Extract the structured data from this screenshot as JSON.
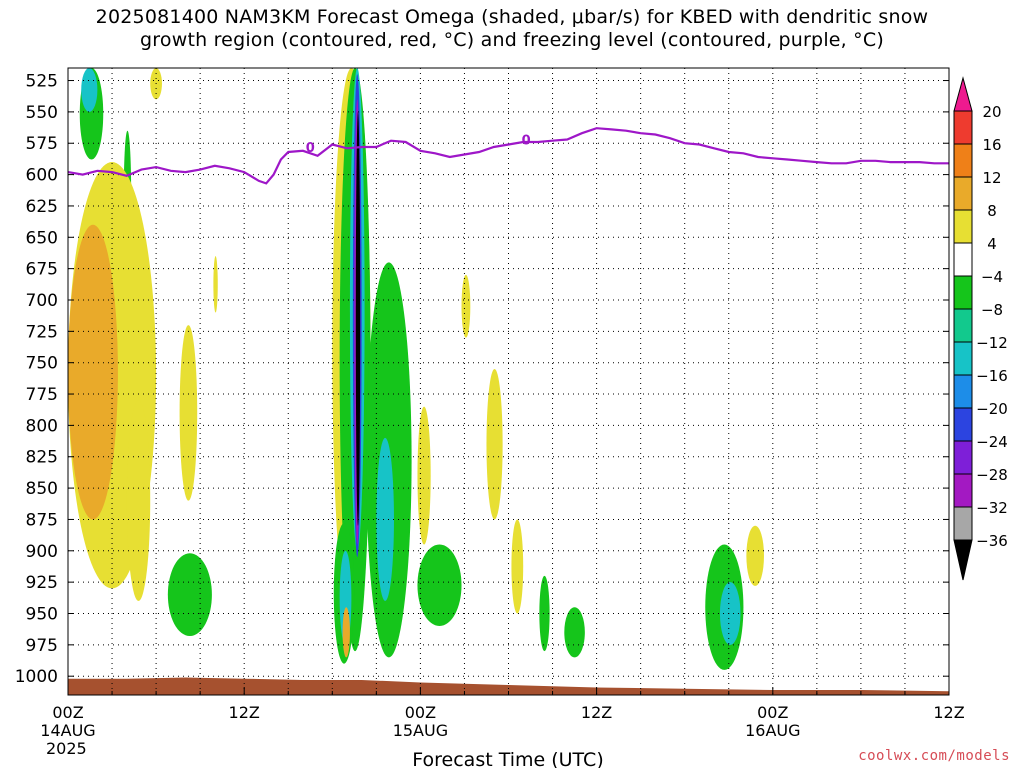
{
  "title": "2025081400 NAM3KM Forecast Omega (shaded, μbar/s) for KBED with dendritic snow\ngrowth region (contoured, red, °C) and freezing level (contoured, purple, °C)",
  "credit": "coolwx.com/models",
  "chart_data": {
    "type": "heatmap",
    "title": "2025081400 NAM3KM Forecast Omega (shaded, μbar/s) for KBED with dendritic snow growth region (contoured, red, °C) and freezing level (contoured, purple, °C)",
    "xlabel": "Forecast Time (UTC)",
    "ylabel": "",
    "x_unit": "hours since 14AUG 00Z",
    "xlim": [
      0,
      60
    ],
    "ylim": [
      1015,
      515
    ],
    "y_ticks": [
      525,
      550,
      575,
      600,
      625,
      650,
      675,
      700,
      725,
      750,
      775,
      800,
      825,
      850,
      875,
      900,
      925,
      950,
      975,
      1000
    ],
    "x_ticks": [
      {
        "x": 0,
        "label": "00Z",
        "sub1": "14AUG",
        "sub2": "2025"
      },
      {
        "x": 12,
        "label": "12Z",
        "sub1": "",
        "sub2": ""
      },
      {
        "x": 24,
        "label": "00Z",
        "sub1": "15AUG",
        "sub2": ""
      },
      {
        "x": 36,
        "label": "12Z",
        "sub1": "",
        "sub2": ""
      },
      {
        "x": 48,
        "label": "00Z",
        "sub1": "16AUG",
        "sub2": ""
      },
      {
        "x": 60,
        "label": "12Z",
        "sub1": "",
        "sub2": ""
      }
    ],
    "grid": true,
    "colorbar": {
      "labels": [
        "20",
        "16",
        "12",
        "8",
        "4",
        "−4",
        "−8",
        "−12",
        "−16",
        "−20",
        "−24",
        "−28",
        "−32",
        "−36"
      ],
      "bins": [
        {
          "from": 20,
          "to": 24,
          "color": "#ee1a8f"
        },
        {
          "from": 16,
          "to": 20,
          "color": "#ee3b2f"
        },
        {
          "from": 12,
          "to": 16,
          "color": "#ef8018"
        },
        {
          "from": 8,
          "to": 12,
          "color": "#e9aa2a"
        },
        {
          "from": 4,
          "to": 8,
          "color": "#e7df33"
        },
        {
          "from": -4,
          "to": 4,
          "color": "#ffffff"
        },
        {
          "from": -8,
          "to": -4,
          "color": "#15c51b"
        },
        {
          "from": -12,
          "to": -8,
          "color": "#12c98d"
        },
        {
          "from": -16,
          "to": -12,
          "color": "#17c3c7"
        },
        {
          "from": -20,
          "to": -16,
          "color": "#1d8de8"
        },
        {
          "from": -24,
          "to": -20,
          "color": "#2c44e0"
        },
        {
          "from": -28,
          "to": -24,
          "color": "#7e1fd8"
        },
        {
          "from": -32,
          "to": -28,
          "color": "#a319c2"
        },
        {
          "from": -36,
          "to": -32,
          "color": "#a7a7a7"
        },
        {
          "from": -40,
          "to": -36,
          "color": "#000000"
        }
      ]
    },
    "freezing_level": {
      "label": "0",
      "color": "#9e17c8",
      "x": [
        0,
        1,
        2,
        3,
        4,
        5,
        6,
        7,
        8,
        9,
        10,
        11,
        12,
        13,
        13.5,
        14,
        14.5,
        15,
        16,
        17,
        18,
        19,
        20,
        21,
        22,
        23,
        24,
        25,
        26,
        27,
        28,
        29,
        30,
        31,
        32,
        33,
        34,
        35,
        36,
        37,
        38,
        39,
        40,
        41,
        42,
        43,
        44,
        45,
        46,
        47,
        48,
        49,
        50,
        51,
        52,
        53,
        54,
        55,
        56,
        57,
        58,
        59,
        60
      ],
      "p": [
        598,
        600,
        597,
        598,
        601,
        596,
        594,
        597,
        598,
        596,
        593,
        595,
        598,
        605,
        607,
        600,
        588,
        582,
        581,
        585,
        576,
        579,
        578,
        578,
        573,
        574,
        581,
        583,
        586,
        584,
        582,
        578,
        576,
        574,
        574,
        573,
        572,
        567,
        563,
        564,
        565,
        567,
        568,
        571,
        575,
        576,
        579,
        582,
        583,
        586,
        587,
        588,
        589,
        590,
        591,
        591,
        589,
        589,
        590,
        590,
        590,
        591,
        591
      ],
      "label_positions": [
        {
          "x": 16.5,
          "p": 578
        },
        {
          "x": 31.2,
          "p": 572
        }
      ]
    },
    "regions": [
      {
        "value": -6,
        "x": [
          0.8,
          2.4
        ],
        "p": [
          515,
          588
        ]
      },
      {
        "value": -14,
        "x": [
          0.9,
          2.0
        ],
        "p": [
          515,
          550
        ]
      },
      {
        "value": -6,
        "x": [
          3.8,
          4.3
        ],
        "p": [
          565,
          663
        ]
      },
      {
        "value": 6,
        "x": [
          5.6,
          6.4
        ],
        "p": [
          515,
          540
        ]
      },
      {
        "value": 6,
        "x": [
          0,
          6.0
        ],
        "p": [
          590,
          930
        ]
      },
      {
        "value": 10,
        "x": [
          0,
          3.4
        ],
        "p": [
          640,
          875
        ]
      },
      {
        "value": 6,
        "x": [
          4.0,
          5.6
        ],
        "p": [
          780,
          940
        ]
      },
      {
        "value": 6,
        "x": [
          7.6,
          8.8
        ],
        "p": [
          720,
          860
        ]
      },
      {
        "value": 6,
        "x": [
          9.9,
          10.2
        ],
        "p": [
          665,
          710
        ]
      },
      {
        "value": -6,
        "x": [
          6.8,
          9.8
        ],
        "p": [
          902,
          968
        ]
      },
      {
        "value": 6,
        "x": [
          18.0,
          20.6
        ],
        "p": [
          515,
          962
        ]
      },
      {
        "value": -6,
        "x": [
          18.5,
          20.6
        ],
        "p": [
          515,
          980
        ]
      },
      {
        "value": -14,
        "x": [
          19.2,
          20.2
        ],
        "p": [
          515,
          900
        ]
      },
      {
        "value": -22,
        "x": [
          19.4,
          20.0
        ],
        "p": [
          520,
          905
        ]
      },
      {
        "value": -30,
        "x": [
          19.5,
          19.9
        ],
        "p": [
          540,
          895
        ]
      },
      {
        "value": -38,
        "x": [
          19.6,
          19.9
        ],
        "p": [
          550,
          880
        ]
      },
      {
        "value": -6,
        "x": [
          18.1,
          19.5
        ],
        "p": [
          878,
          990
        ]
      },
      {
        "value": -14,
        "x": [
          18.5,
          19.3
        ],
        "p": [
          900,
          975
        ]
      },
      {
        "value": 10,
        "x": [
          18.7,
          19.2
        ],
        "p": [
          945,
          985
        ]
      },
      {
        "value": -6,
        "x": [
          20.3,
          23.4
        ],
        "p": [
          670,
          985
        ]
      },
      {
        "value": -14,
        "x": [
          21.0,
          22.2
        ],
        "p": [
          810,
          940
        ]
      },
      {
        "value": 6,
        "x": [
          23.8,
          24.7
        ],
        "p": [
          785,
          895
        ]
      },
      {
        "value": -6,
        "x": [
          23.8,
          26.8
        ],
        "p": [
          895,
          960
        ]
      },
      {
        "value": 6,
        "x": [
          26.8,
          27.4
        ],
        "p": [
          680,
          730
        ]
      },
      {
        "value": 6,
        "x": [
          28.5,
          29.6
        ],
        "p": [
          755,
          875
        ]
      },
      {
        "value": 6,
        "x": [
          30.2,
          31.0
        ],
        "p": [
          875,
          950
        ]
      },
      {
        "value": -6,
        "x": [
          32.1,
          32.8
        ],
        "p": [
          920,
          980
        ]
      },
      {
        "value": -6,
        "x": [
          33.8,
          35.2
        ],
        "p": [
          945,
          985
        ]
      },
      {
        "value": -6,
        "x": [
          43.4,
          46.0
        ],
        "p": [
          895,
          995
        ]
      },
      {
        "value": -14,
        "x": [
          44.4,
          45.8
        ],
        "p": [
          925,
          975
        ]
      },
      {
        "value": 6,
        "x": [
          46.2,
          47.4
        ],
        "p": [
          880,
          928
        ]
      }
    ],
    "terrain": {
      "color": "#a6512f",
      "x": [
        0,
        4,
        8,
        12,
        16,
        20,
        24,
        30,
        36,
        42,
        48,
        54,
        60
      ],
      "p": [
        1002,
        1002,
        1001,
        1002,
        1003,
        1003,
        1005,
        1007,
        1009,
        1010,
        1011,
        1011,
        1012
      ]
    }
  }
}
